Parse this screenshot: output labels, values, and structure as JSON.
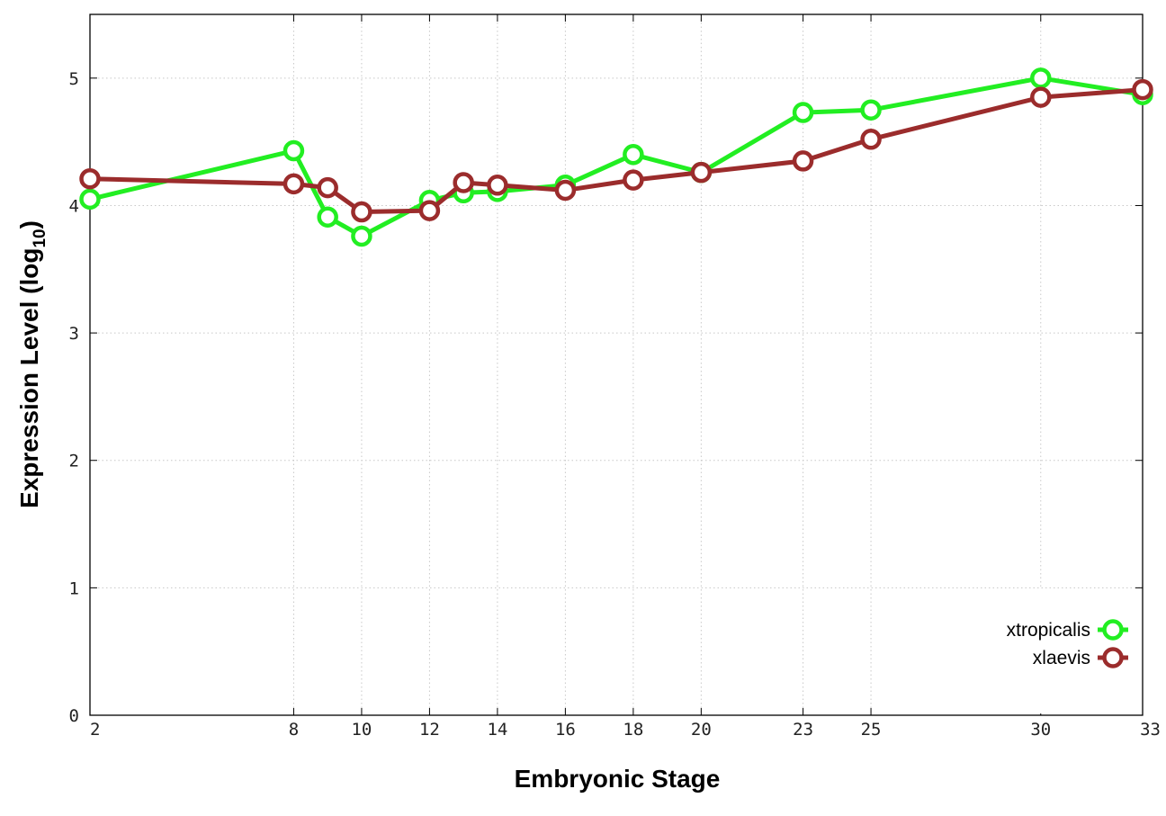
{
  "chart_data": {
    "type": "line",
    "xlabel": "Embryonic Stage",
    "ylabel": "Expression Level (log",
    "ylabel_sub": "10",
    "ylabel_close": ")",
    "xlim": [
      2,
      33
    ],
    "ylim": [
      0,
      5.5
    ],
    "x_ticks": [
      2,
      8,
      10,
      12,
      14,
      16,
      18,
      20,
      23,
      25,
      30,
      33
    ],
    "y_ticks": [
      0,
      1,
      2,
      3,
      4,
      5
    ],
    "grid": true,
    "legend_position": "bottom-right",
    "x": [
      2,
      8,
      9,
      10,
      12,
      13,
      14,
      16,
      18,
      20,
      23,
      25,
      30,
      33
    ],
    "series": [
      {
        "name": "xtropicalis",
        "color": "#22ee22",
        "values": [
          4.05,
          4.43,
          3.91,
          3.76,
          4.04,
          4.1,
          4.11,
          4.16,
          4.4,
          4.26,
          4.73,
          4.75,
          5.0,
          4.87
        ]
      },
      {
        "name": "xlaevis",
        "color": "#9b2c2c",
        "values": [
          4.21,
          4.17,
          4.14,
          3.95,
          3.96,
          4.18,
          4.16,
          4.12,
          4.2,
          4.26,
          4.35,
          4.52,
          4.85,
          4.91
        ]
      }
    ]
  }
}
